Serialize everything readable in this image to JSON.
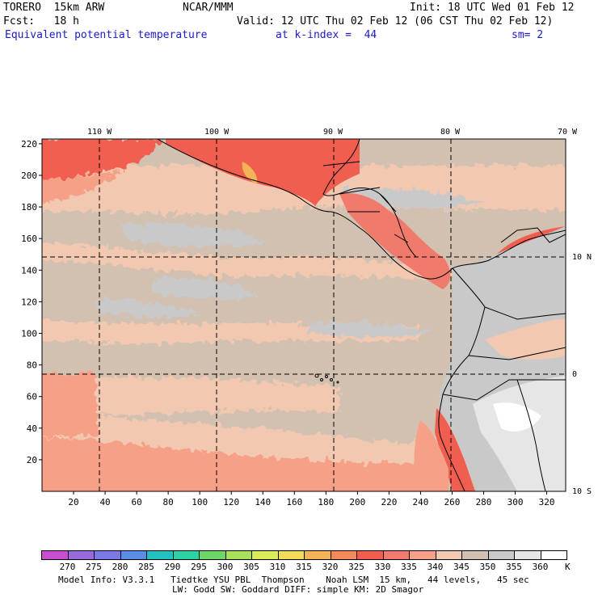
{
  "header": {
    "model": "TORERO  15km ARW",
    "agency": "NCAR/MMM",
    "init": "Init: 18 UTC Wed 01 Feb 12",
    "fcst": "Fcst:   18 h",
    "valid": "Valid: 12 UTC Thu 02 Feb 12 (06 CST Thu 02 Feb 12)",
    "field": "Equivalent potential temperature",
    "level": "at k-index =  44",
    "smooth": "sm= 2"
  },
  "lon_labels": [
    "110 W",
    "100 W",
    "90 W",
    "80 W",
    "70 W"
  ],
  "lat_labels": [
    "10 N",
    "0",
    "10 S"
  ],
  "y_grid_labels": [
    "220",
    "200",
    "180",
    "160",
    "140",
    "120",
    "100",
    "80",
    "60",
    "40",
    "20"
  ],
  "x_grid_labels": [
    "20",
    "40",
    "60",
    "80",
    "100",
    "120",
    "140",
    "160",
    "180",
    "200",
    "220",
    "240",
    "260",
    "280",
    "300",
    "320"
  ],
  "colorbar": {
    "labels": [
      "270",
      "275",
      "280",
      "285",
      "290",
      "295",
      "300",
      "305",
      "310",
      "315",
      "320",
      "325",
      "330",
      "335",
      "340",
      "345",
      "350",
      "355",
      "360"
    ],
    "unit": "K",
    "colors": [
      "#c84ecf",
      "#9a6adc",
      "#7a7ae6",
      "#5a8ee6",
      "#22c2c2",
      "#2ad2a4",
      "#6ed666",
      "#a8e05a",
      "#dceb5a",
      "#f2da5a",
      "#f2b454",
      "#f28a5a",
      "#f05e50",
      "#f07a6c",
      "#f7a088",
      "#f2c8b0",
      "#d2c0b0",
      "#c9c9c9",
      "#e6e6e6",
      "#ffffff"
    ]
  },
  "footer": {
    "line1": "Model Info: V3.3.1   Tiedtke YSU PBL  Thompson    Noah LSM  15 km,   44 levels,   45 sec",
    "line2": "LW: Godd SW: Goddard DIFF: simple KM: 2D Smagor"
  }
}
